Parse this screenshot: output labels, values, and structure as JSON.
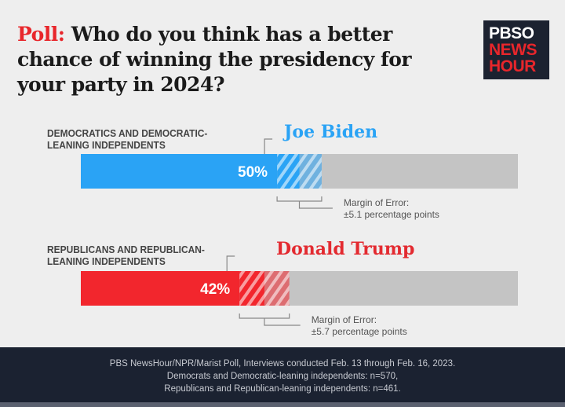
{
  "title": {
    "prefix": "Poll:",
    "text": " Who do you think has a better chance of winning the presidency for your party in 2024?"
  },
  "logo": {
    "line1": "PBSO",
    "line2": "NEWS",
    "line3": "HOUR"
  },
  "chart_data": {
    "type": "bar",
    "orientation": "horizontal",
    "xlim": [
      0,
      100
    ],
    "categories": [
      "DEMOCRATICS AND DEMOCRATIC-LEANING INDEPENDENTS",
      "REPUBLICANS AND REPUBLICAN-LEANING INDEPENDENTS"
    ],
    "bars": [
      {
        "group_line1": "DEMOCRATICS AND DEMOCRATIC-",
        "group_line2": "LEANING INDEPENDENTS",
        "candidate": "Joe Biden",
        "value": 50,
        "label": "50%",
        "margin_of_error": 5.1,
        "moe_line1": "Margin of Error:",
        "moe_line2": "±5.1 percentage points",
        "color": "#2aa3f5"
      },
      {
        "group_line1": "REPUBLICANS AND REPUBLICAN-",
        "group_line2": "LEANING INDEPENDENTS",
        "candidate": "Donald Trump",
        "value": 42,
        "label": "42%",
        "margin_of_error": 5.7,
        "moe_line1": "Margin of Error:",
        "moe_line2": "±5.7 percentage points",
        "color": "#f2262d"
      }
    ],
    "track_color": "#c4c4c4"
  },
  "footer": {
    "line1": "PBS NewsHour/NPR/Marist Poll, Interviews conducted Feb. 13 through Feb. 16, 2023.",
    "line2": "Democrats and Democratic-leaning independents: n=570,",
    "line3": "Republicans and Republican-leaning independents: n=461."
  }
}
